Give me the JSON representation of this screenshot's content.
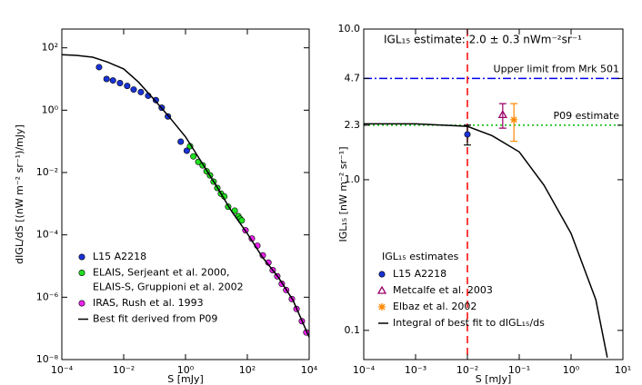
{
  "chart_data": [
    {
      "type": "scatter",
      "log_x": true,
      "log_y": true,
      "xlabel": "S [mJy]",
      "ylabel": "dIGL/dS [(nW m⁻² sr⁻¹)/mJy]",
      "xlim": [
        0.0001,
        10000
      ],
      "ylim": [
        1e-08,
        400
      ],
      "xticks": [
        {
          "value": 0.0001,
          "label": "10⁻⁴"
        },
        {
          "value": 0.01,
          "label": "10⁻²"
        },
        {
          "value": 1,
          "label": "10⁰"
        },
        {
          "value": 100,
          "label": "10²"
        },
        {
          "value": 10000,
          "label": "10⁴"
        }
      ],
      "yticks": [
        {
          "value": 1e-08,
          "label": "10⁻⁸"
        },
        {
          "value": 1e-06,
          "label": "10⁻⁶"
        },
        {
          "value": 0.0001,
          "label": "10⁻⁴"
        },
        {
          "value": 0.01,
          "label": "10⁻²"
        },
        {
          "value": 1,
          "label": "10⁰"
        },
        {
          "value": 100,
          "label": "10²"
        }
      ],
      "series": [
        {
          "name": "L15 A2218",
          "color": "#1a33d6",
          "mode": "markers",
          "marker": "circle",
          "x": [
            0.0016,
            0.0028,
            0.0045,
            0.0076,
            0.013,
            0.021,
            0.036,
            0.062,
            0.11,
            0.17,
            0.27,
            0.7,
            1.1
          ],
          "values": [
            24,
            10,
            9,
            7.4,
            6.0,
            4.6,
            3.8,
            2.9,
            2.1,
            1.2,
            0.63,
            0.098,
            0.05
          ]
        },
        {
          "name": "ELAIS, Serjeant et al. 2000,",
          "name_line2": "ELAIS-S, Gruppioni et al. 2002",
          "color": "#22e022",
          "mode": "markers",
          "marker": "circle",
          "x": [
            1.4,
            1.8,
            2.6,
            3.6,
            4.8,
            6.2,
            8.1,
            10.7,
            14,
            18,
            24,
            39,
            51,
            58,
            66
          ],
          "values": [
            0.07,
            0.033,
            0.022,
            0.017,
            0.011,
            0.0081,
            0.0051,
            0.0032,
            0.0021,
            0.0017,
            0.0008,
            0.0006,
            0.0004,
            0.00033,
            0.00029
          ]
        },
        {
          "name": "IRAS, Rush et al. 1993",
          "color": "#ee22ee",
          "mode": "markers",
          "marker": "circle",
          "x": [
            87,
            140,
            210,
            316,
            480,
            660,
            930,
            1300,
            1800,
            2750,
            3900,
            5800,
            8100
          ],
          "values": [
            0.00014,
            7.6e-05,
            4.5e-05,
            2.2e-05,
            1.3e-05,
            7.4e-06,
            4.7e-06,
            2.7e-06,
            1.7e-06,
            8.7e-07,
            4.2e-07,
            1.7e-07,
            7.4e-08
          ]
        },
        {
          "name": "Best fit derived from P09",
          "color": "#000000",
          "mode": "line",
          "x": [
            0.0001,
            0.0003,
            0.001,
            0.003,
            0.01,
            0.03,
            0.1,
            0.3,
            1,
            3,
            10,
            30,
            100,
            300,
            1000,
            3000,
            10000
          ],
          "values": [
            60,
            57,
            50,
            35,
            21,
            8,
            2.1,
            0.6,
            0.14,
            0.025,
            0.0037,
            0.0006,
            0.00011,
            2e-05,
            4.4e-06,
            8e-07,
            5.2e-08
          ]
        }
      ]
    },
    {
      "type": "scatter",
      "log_x": true,
      "log_y": true,
      "title": "IGL₁₅ estimate: 2.0 ± 0.3 nWm⁻²sr⁻¹",
      "xlabel": "S [mJy]",
      "ylabel": "IGL₁₅ [nW m⁻² sr⁻¹]",
      "xlim": [
        0.0001,
        10
      ],
      "ylim": [
        0.064,
        10
      ],
      "xticks": [
        {
          "value": 0.0001,
          "label": "10⁻⁴"
        },
        {
          "value": 0.001,
          "label": "10⁻³"
        },
        {
          "value": 0.01,
          "label": "10⁻²"
        },
        {
          "value": 0.1,
          "label": "10⁻¹"
        },
        {
          "value": 1,
          "label": "10⁰"
        },
        {
          "value": 10,
          "label": "10¹"
        }
      ],
      "yticks": [
        0.1,
        {
          "value": 1,
          "label": "1.0"
        },
        2.3,
        4.7,
        {
          "value": 10,
          "label": "10.0"
        }
      ],
      "hlines": [
        {
          "value": 4.7,
          "label": "Upper limit from Mrk 501",
          "color": "#0000ee",
          "style": "dashdot"
        },
        {
          "value": 2.3,
          "label": "P09 estimate",
          "color": "#00bb00",
          "style": "dotted"
        }
      ],
      "vlines": [
        {
          "value": 0.01,
          "color": "#ff0000",
          "style": "dashed"
        }
      ],
      "legend_title": "IGL₁₅ estimates",
      "series": [
        {
          "name": "L15 A2218",
          "color": "#1a33d6",
          "mode": "markers",
          "marker": "circle",
          "x": [
            0.01
          ],
          "values": [
            2.0
          ],
          "errors": [
            0.3
          ]
        },
        {
          "name": "Metcalfe et al. 2003",
          "color": "#990066",
          "mode": "markers",
          "marker": "triangle",
          "x": [
            0.048
          ],
          "values": [
            2.7
          ],
          "errors": [
            0.5
          ]
        },
        {
          "name": "Elbaz et al. 2002",
          "color": "#ff8800",
          "mode": "markers",
          "marker": "asterisk",
          "x": [
            0.079
          ],
          "values": [
            2.5
          ],
          "errors": [
            0.7
          ]
        },
        {
          "name": "Integral of best fit to dIGL₁₅/ds",
          "color": "#000000",
          "mode": "line",
          "x": [
            0.0001,
            0.001,
            0.01,
            0.03,
            0.1,
            0.3,
            1,
            3,
            5
          ],
          "values": [
            2.35,
            2.35,
            2.26,
            1.96,
            1.53,
            0.92,
            0.44,
            0.16,
            0.066
          ]
        }
      ]
    }
  ]
}
